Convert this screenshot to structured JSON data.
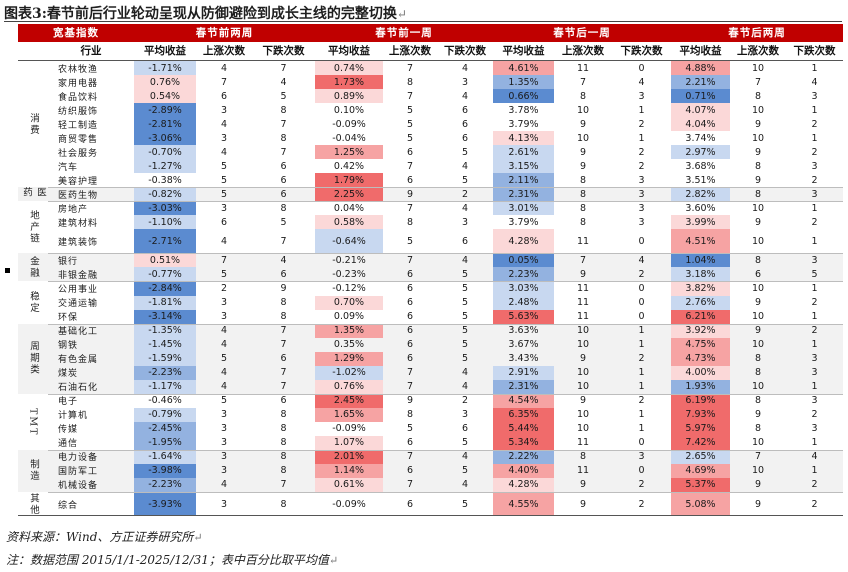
{
  "title": "图表3:春节前后行业轮动呈现从防御避险到成长主线的完整切换",
  "return_mark": "↵",
  "header": {
    "col_group_label": "宽基指数",
    "periods": [
      "春节前两周",
      "春节前一周",
      "春节后一周",
      "春节后两周"
    ],
    "industry_label": "行业",
    "metric_labels": [
      "平均收益",
      "上涨次数",
      "下跌次数"
    ]
  },
  "colors": {
    "header_red": "#c00000",
    "strong_red": "#f06b6b",
    "mid_red": "#f6a3a3",
    "light_red": "#fbd8d8",
    "strong_blue": "#5b8bd0",
    "mid_blue": "#93b2e0",
    "light_blue": "#c8d8f0",
    "band_gray": "#f2f2f2"
  },
  "groups": [
    {
      "name": "消费",
      "rows": [
        {
          "name": "农林牧渔",
          "cells": [
            [
              "-1.71%",
              "4",
              "7"
            ],
            [
              "0.74%",
              "7",
              "4"
            ],
            [
              "4.61%",
              "11",
              "0"
            ],
            [
              "4.88%",
              "10",
              "1"
            ]
          ]
        },
        {
          "name": "家用电器",
          "cells": [
            [
              "0.76%",
              "7",
              "4"
            ],
            [
              "1.73%",
              "8",
              "3"
            ],
            [
              "1.35%",
              "7",
              "4"
            ],
            [
              "2.21%",
              "7",
              "4"
            ]
          ]
        },
        {
          "name": "食品饮料",
          "cells": [
            [
              "0.54%",
              "6",
              "5"
            ],
            [
              "0.89%",
              "7",
              "4"
            ],
            [
              "0.66%",
              "8",
              "3"
            ],
            [
              "0.71%",
              "8",
              "3"
            ]
          ]
        },
        {
          "name": "纺织服饰",
          "cells": [
            [
              "-2.89%",
              "3",
              "8"
            ],
            [
              "0.10%",
              "5",
              "6"
            ],
            [
              "3.78%",
              "10",
              "1"
            ],
            [
              "4.07%",
              "10",
              "1"
            ]
          ]
        },
        {
          "name": "轻工制造",
          "cells": [
            [
              "-2.81%",
              "4",
              "7"
            ],
            [
              "-0.09%",
              "5",
              "6"
            ],
            [
              "3.79%",
              "9",
              "2"
            ],
            [
              "4.04%",
              "9",
              "2"
            ]
          ]
        },
        {
          "name": "商贸零售",
          "cells": [
            [
              "-3.06%",
              "3",
              "8"
            ],
            [
              "-0.04%",
              "5",
              "6"
            ],
            [
              "4.13%",
              "10",
              "1"
            ],
            [
              "3.74%",
              "10",
              "1"
            ]
          ]
        },
        {
          "name": "社会服务",
          "cells": [
            [
              "-0.70%",
              "4",
              "7"
            ],
            [
              "1.25%",
              "6",
              "5"
            ],
            [
              "2.61%",
              "9",
              "2"
            ],
            [
              "2.97%",
              "9",
              "2"
            ]
          ]
        },
        {
          "name": "汽车",
          "cells": [
            [
              "-1.27%",
              "5",
              "6"
            ],
            [
              "0.42%",
              "7",
              "4"
            ],
            [
              "3.15%",
              "9",
              "2"
            ],
            [
              "3.68%",
              "8",
              "3"
            ]
          ]
        },
        {
          "name": "美容护理",
          "cells": [
            [
              "-0.38%",
              "5",
              "6"
            ],
            [
              "1.79%",
              "6",
              "5"
            ],
            [
              "2.11%",
              "8",
              "3"
            ],
            [
              "3.51%",
              "9",
              "2"
            ]
          ]
        }
      ]
    },
    {
      "name": "医药",
      "rows": [
        {
          "name": "医药生物",
          "cells": [
            [
              "-0.82%",
              "5",
              "6"
            ],
            [
              "2.25%",
              "9",
              "2"
            ],
            [
              "2.31%",
              "8",
              "3"
            ],
            [
              "2.82%",
              "8",
              "3"
            ]
          ]
        }
      ]
    },
    {
      "name": "地产链",
      "rows": [
        {
          "name": "房地产",
          "cells": [
            [
              "-3.03%",
              "3",
              "8"
            ],
            [
              "0.04%",
              "7",
              "4"
            ],
            [
              "3.01%",
              "8",
              "3"
            ],
            [
              "3.60%",
              "10",
              "1"
            ]
          ]
        },
        {
          "name": "建筑材料",
          "cells": [
            [
              "-1.10%",
              "6",
              "5"
            ],
            [
              "0.58%",
              "8",
              "3"
            ],
            [
              "3.79%",
              "8",
              "3"
            ],
            [
              "3.99%",
              "9",
              "2"
            ]
          ]
        },
        {
          "name": "建筑装饰",
          "cells": [
            [
              "-2.71%",
              "4",
              "7"
            ],
            [
              "-0.64%",
              "5",
              "6"
            ],
            [
              "4.28%",
              "11",
              "0"
            ],
            [
              "4.51%",
              "10",
              "1"
            ]
          ]
        }
      ]
    },
    {
      "name": "金融",
      "rows": [
        {
          "name": "银行",
          "cells": [
            [
              "0.51%",
              "7",
              "4"
            ],
            [
              "-0.21%",
              "7",
              "4"
            ],
            [
              "0.05%",
              "7",
              "4"
            ],
            [
              "1.04%",
              "8",
              "3"
            ]
          ]
        },
        {
          "name": "非银金融",
          "cells": [
            [
              "-0.77%",
              "5",
              "6"
            ],
            [
              "-0.23%",
              "6",
              "5"
            ],
            [
              "2.23%",
              "9",
              "2"
            ],
            [
              "3.18%",
              "6",
              "5"
            ]
          ]
        }
      ]
    },
    {
      "name": "稳定",
      "rows": [
        {
          "name": "公用事业",
          "cells": [
            [
              "-2.84%",
              "2",
              "9"
            ],
            [
              "-0.12%",
              "6",
              "5"
            ],
            [
              "3.03%",
              "11",
              "0"
            ],
            [
              "3.82%",
              "10",
              "1"
            ]
          ]
        },
        {
          "name": "交通运输",
          "cells": [
            [
              "-1.81%",
              "3",
              "8"
            ],
            [
              "0.70%",
              "6",
              "5"
            ],
            [
              "2.48%",
              "11",
              "0"
            ],
            [
              "2.76%",
              "9",
              "2"
            ]
          ]
        },
        {
          "name": "环保",
          "cells": [
            [
              "-3.14%",
              "3",
              "8"
            ],
            [
              "0.09%",
              "6",
              "5"
            ],
            [
              "5.63%",
              "11",
              "0"
            ],
            [
              "6.21%",
              "10",
              "1"
            ]
          ]
        }
      ]
    },
    {
      "name": "周期类",
      "rows": [
        {
          "name": "基础化工",
          "cells": [
            [
              "-1.35%",
              "4",
              "7"
            ],
            [
              "1.35%",
              "6",
              "5"
            ],
            [
              "3.63%",
              "10",
              "1"
            ],
            [
              "3.92%",
              "9",
              "2"
            ]
          ]
        },
        {
          "name": "钢铁",
          "cells": [
            [
              "-1.45%",
              "4",
              "7"
            ],
            [
              "0.35%",
              "6",
              "5"
            ],
            [
              "3.67%",
              "10",
              "1"
            ],
            [
              "4.75%",
              "10",
              "1"
            ]
          ]
        },
        {
          "name": "有色金属",
          "cells": [
            [
              "-1.59%",
              "5",
              "6"
            ],
            [
              "1.29%",
              "6",
              "5"
            ],
            [
              "3.43%",
              "9",
              "2"
            ],
            [
              "4.73%",
              "8",
              "3"
            ]
          ]
        },
        {
          "name": "煤炭",
          "cells": [
            [
              "-2.23%",
              "4",
              "7"
            ],
            [
              "-1.02%",
              "7",
              "4"
            ],
            [
              "2.91%",
              "10",
              "1"
            ],
            [
              "4.00%",
              "8",
              "3"
            ]
          ]
        },
        {
          "name": "石油石化",
          "cells": [
            [
              "-1.17%",
              "4",
              "7"
            ],
            [
              "0.76%",
              "7",
              "4"
            ],
            [
              "2.31%",
              "10",
              "1"
            ],
            [
              "1.93%",
              "10",
              "1"
            ]
          ]
        }
      ]
    },
    {
      "name": "TMT",
      "rows": [
        {
          "name": "电子",
          "cells": [
            [
              "-0.46%",
              "5",
              "6"
            ],
            [
              "2.45%",
              "9",
              "2"
            ],
            [
              "4.54%",
              "9",
              "2"
            ],
            [
              "6.19%",
              "8",
              "3"
            ]
          ]
        },
        {
          "name": "计算机",
          "cells": [
            [
              "-0.79%",
              "3",
              "8"
            ],
            [
              "1.65%",
              "8",
              "3"
            ],
            [
              "6.35%",
              "10",
              "1"
            ],
            [
              "7.93%",
              "9",
              "2"
            ]
          ]
        },
        {
          "name": "传媒",
          "cells": [
            [
              "-2.45%",
              "3",
              "8"
            ],
            [
              "-0.09%",
              "5",
              "6"
            ],
            [
              "5.44%",
              "10",
              "1"
            ],
            [
              "5.97%",
              "8",
              "3"
            ]
          ]
        },
        {
          "name": "通信",
          "cells": [
            [
              "-1.95%",
              "3",
              "8"
            ],
            [
              "1.07%",
              "6",
              "5"
            ],
            [
              "5.34%",
              "11",
              "0"
            ],
            [
              "7.42%",
              "10",
              "1"
            ]
          ]
        }
      ]
    },
    {
      "name": "制造",
      "rows": [
        {
          "name": "电力设备",
          "cells": [
            [
              "-1.64%",
              "3",
              "8"
            ],
            [
              "2.01%",
              "7",
              "4"
            ],
            [
              "2.22%",
              "8",
              "3"
            ],
            [
              "2.65%",
              "7",
              "4"
            ]
          ]
        },
        {
          "name": "国防军工",
          "cells": [
            [
              "-3.98%",
              "3",
              "8"
            ],
            [
              "1.14%",
              "6",
              "5"
            ],
            [
              "4.40%",
              "11",
              "0"
            ],
            [
              "4.69%",
              "10",
              "1"
            ]
          ]
        },
        {
          "name": "机械设备",
          "cells": [
            [
              "-2.23%",
              "4",
              "7"
            ],
            [
              "0.61%",
              "7",
              "4"
            ],
            [
              "4.28%",
              "9",
              "2"
            ],
            [
              "5.37%",
              "9",
              "2"
            ]
          ]
        }
      ]
    },
    {
      "name": "其他",
      "rows": [
        {
          "name": "综合",
          "cells": [
            [
              "-3.93%",
              "3",
              "8"
            ],
            [
              "-0.09%",
              "6",
              "5"
            ],
            [
              "4.55%",
              "9",
              "2"
            ],
            [
              "5.08%",
              "9",
              "2"
            ]
          ]
        }
      ]
    }
  ],
  "footer": {
    "source": "资料来源：Wind、方正证券研究所",
    "note": "注：数据范围 2015/1/1-2025/12/31；表中百分比取平均值"
  }
}
